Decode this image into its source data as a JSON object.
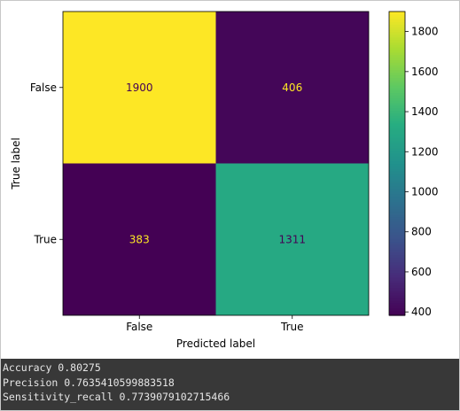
{
  "chart_data": {
    "type": "heatmap",
    "title": "",
    "xlabel": "Predicted label",
    "ylabel": "True label",
    "x_categories": [
      "False",
      "True"
    ],
    "y_categories": [
      "False",
      "True"
    ],
    "matrix": [
      [
        1900,
        406
      ],
      [
        383,
        1311
      ]
    ],
    "colormap": "viridis",
    "colorbar": {
      "min": 383,
      "max": 1900,
      "ticks": [
        400,
        600,
        800,
        1000,
        1200,
        1400,
        1600,
        1800
      ]
    },
    "text_colors": {
      "on_dark": "#fde725",
      "on_light": "#440154"
    }
  },
  "output": {
    "lines": [
      "Accuracy 0.80275",
      "Precision 0.7635410599883518",
      "Sensitivity_recall 0.7739079102715466"
    ]
  }
}
